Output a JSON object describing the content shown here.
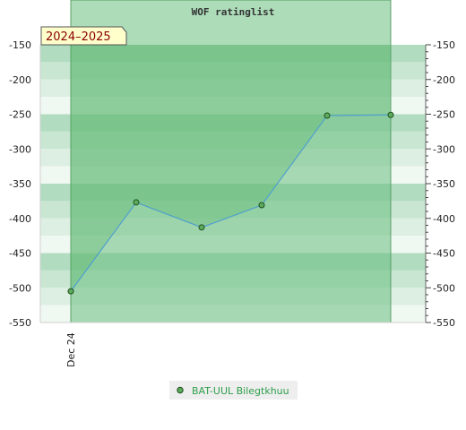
{
  "chart_data": {
    "type": "line",
    "title": "WOF ratinglist",
    "season_label": "2024–2025",
    "ylim": [
      -550,
      -150
    ],
    "y_ticks": [
      "-150",
      "-200",
      "-250",
      "-300",
      "-350",
      "-400",
      "-450",
      "-500",
      "-550"
    ],
    "y_tick_values": [
      -150,
      -200,
      -250,
      -300,
      -350,
      -400,
      -450,
      -500,
      -550
    ],
    "x_tick_labels": [
      "Dec 24"
    ],
    "series": [
      {
        "name": "BAT-UUL Bilegtkhuu",
        "values": [
          -505,
          -377,
          -413,
          -381,
          -252,
          -251
        ]
      }
    ],
    "grid": true,
    "legend_position": "bottom",
    "colors": {
      "line": "#4f9fcf",
      "marker": "#5cab5c",
      "marker_stroke": "#1f4f1f",
      "area_fill": "#5fb86f",
      "season_fill": "#6abf7f",
      "band_dark": "#b2dcc0",
      "band_light": "#f0f8f2",
      "badge_fill": "#ffffcc",
      "badge_text": "#8b0000",
      "legend_text": "#2e9e4b"
    }
  }
}
